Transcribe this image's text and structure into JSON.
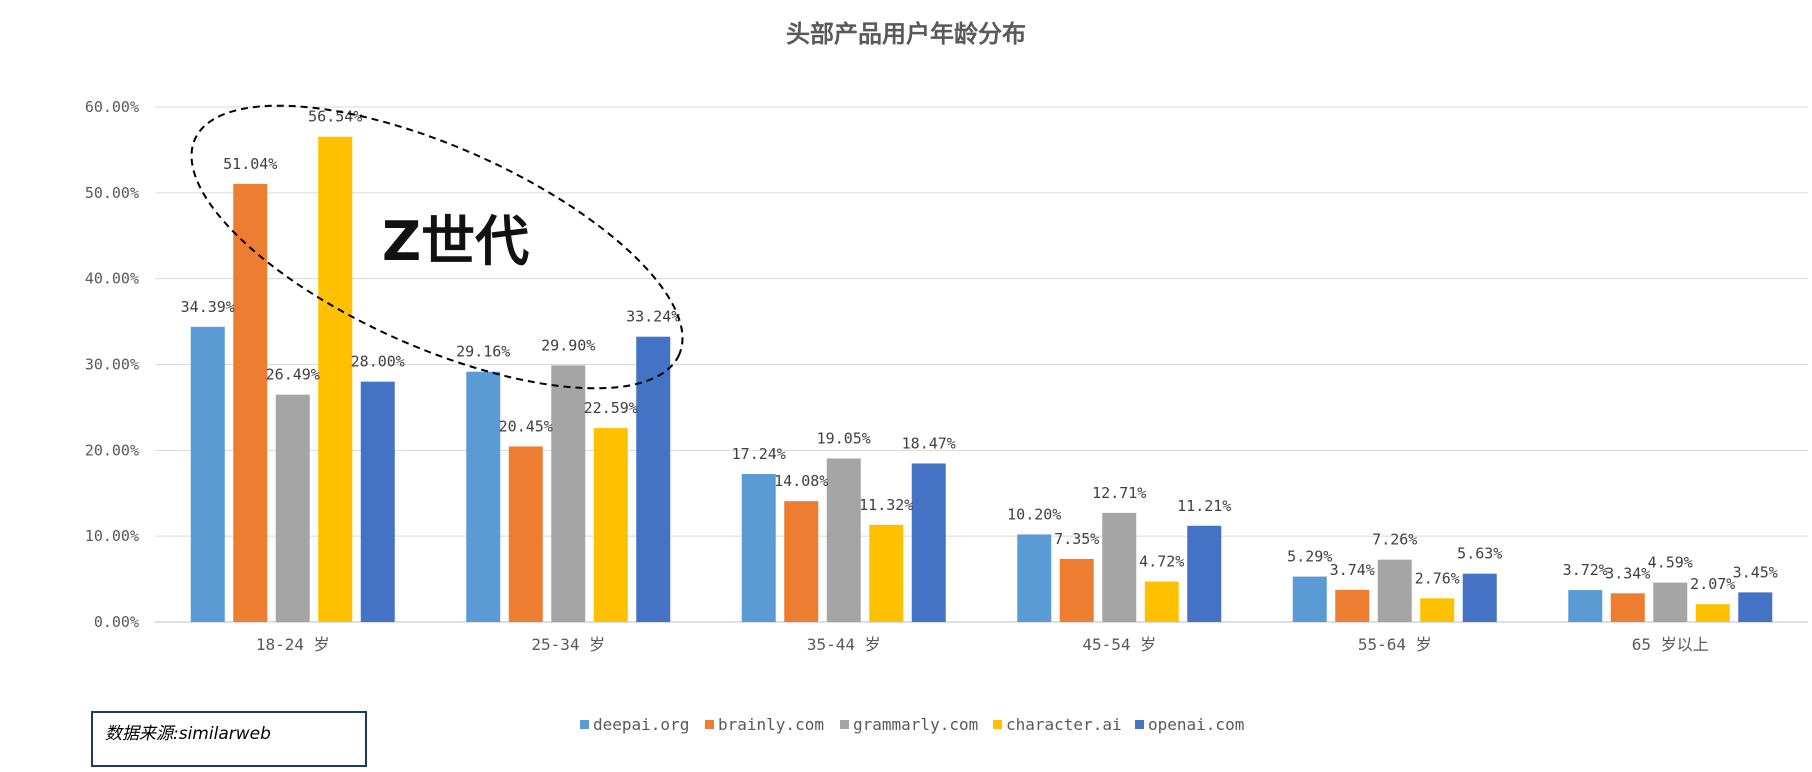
{
  "chart_data": {
    "type": "bar",
    "title": "头部产品用户年龄分布",
    "categories": [
      "18-24 岁",
      "25-34 岁",
      "35-44 岁",
      "45-54 岁",
      "55-64 岁",
      "65 岁以上"
    ],
    "series": [
      {
        "name": "deepai.org",
        "color": "#5b9bd5",
        "values": [
          34.39,
          29.16,
          17.24,
          10.2,
          5.29,
          3.72
        ],
        "labels": [
          "34.39%",
          "29.16%",
          "17.24%",
          "10.20%",
          "5.29%",
          "3.72%"
        ]
      },
      {
        "name": "brainly.com",
        "color": "#ed7d31",
        "values": [
          51.04,
          20.45,
          14.08,
          7.35,
          3.74,
          3.34
        ],
        "labels": [
          "51.04%",
          "20.45%",
          "14.08%",
          "7.35%",
          "3.74%",
          "3.34%"
        ]
      },
      {
        "name": "grammarly.com",
        "color": "#a5a5a5",
        "values": [
          26.49,
          29.9,
          19.05,
          12.71,
          7.26,
          4.59
        ],
        "labels": [
          "26.49%",
          "29.90%",
          "19.05%",
          "12.71%",
          "7.26%",
          "4.59%"
        ]
      },
      {
        "name": "character.ai",
        "color": "#ffc000",
        "values": [
          56.54,
          22.59,
          11.32,
          4.72,
          2.76,
          2.07
        ],
        "labels": [
          "56.54%",
          "22.59%",
          "11.32%",
          "4.72%",
          "2.76%",
          "2.07%"
        ]
      },
      {
        "name": "openai.com",
        "color": "#4472c4",
        "values": [
          28.0,
          33.24,
          18.47,
          11.21,
          5.63,
          3.45
        ],
        "labels": [
          "28.00%",
          "33.24%",
          "18.47%",
          "11.21%",
          "5.63%",
          "3.45%"
        ]
      }
    ],
    "ylim": [
      0,
      60
    ],
    "yticks": [
      0,
      10,
      20,
      30,
      40,
      50,
      60
    ],
    "ytick_labels": [
      "0.00%",
      "10.00%",
      "20.00%",
      "30.00%",
      "40.00%",
      "50.00%",
      "60.00%"
    ],
    "grid": true,
    "legend_position": "bottom",
    "annotation": "Z世代"
  },
  "source_note": "数据来源:similarweb"
}
